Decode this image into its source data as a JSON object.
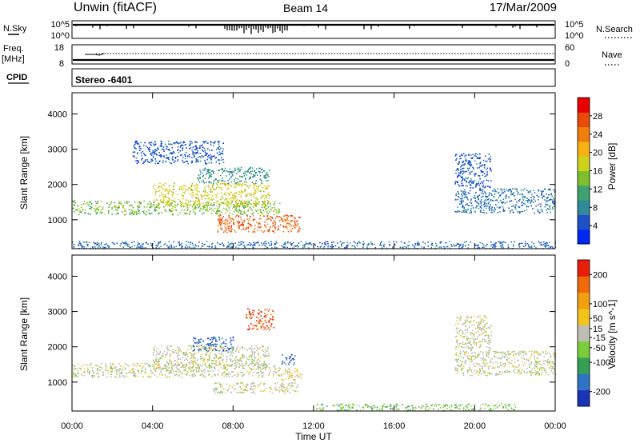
{
  "header": {
    "title": "Unwin (fitACF)",
    "beam": "Beam 14",
    "date": "17/Mar/2009"
  },
  "status_panels": {
    "nsky_label": "N.Sky",
    "nsky_ticks": [
      "10^5",
      "10^0"
    ],
    "nsearch_label": "N.Search",
    "nsearch_ticks": [
      "10^5",
      "10^0"
    ],
    "freq_label": "Freq.",
    "freq_unit": "[MHz]",
    "freq_ticks": [
      "18",
      "8"
    ],
    "nave_label": "Nave",
    "nave_ticks": [
      "60",
      "0"
    ],
    "cpid_label": "CPID",
    "cpid_value": "Stereo -6401"
  },
  "chart_data": [
    {
      "type": "heatmap",
      "quantity": "power",
      "ylabel": "Slant Range [km]",
      "xlabel": "",
      "x_ticks": [
        "00:00",
        "04:00",
        "08:00",
        "12:00",
        "16:00",
        "20:00",
        "00:00"
      ],
      "xlim_hours": [
        0,
        24
      ],
      "y_ticks": [
        1000,
        2000,
        3000,
        4000
      ],
      "ylim": [
        180,
        4600
      ],
      "colorbar": {
        "label": "Power [dB]",
        "ticks": [
          4,
          8,
          12,
          16,
          20,
          24,
          28
        ],
        "range": [
          0,
          32
        ],
        "colors": [
          "#0028f0",
          "#1e50c8",
          "#2f8a9a",
          "#3fa070",
          "#7cc02c",
          "#cfd21a",
          "#f6b214",
          "#f07d0c",
          "#e84a08",
          "#e80000"
        ]
      },
      "regions": [
        {
          "t0": 0.0,
          "t1": 10.3,
          "r0": 1150,
          "r1": 1550,
          "level": 14
        },
        {
          "t0": 4.0,
          "t1": 9.8,
          "r0": 1400,
          "r1": 2050,
          "level": 18
        },
        {
          "t0": 6.2,
          "t1": 9.8,
          "r0": 2050,
          "r1": 2500,
          "level": 9
        },
        {
          "t0": 3.0,
          "t1": 7.5,
          "r0": 2600,
          "r1": 3250,
          "level": 5
        },
        {
          "t0": 7.2,
          "t1": 11.3,
          "r0": 650,
          "r1": 1150,
          "level": 26
        },
        {
          "t0": 19.0,
          "t1": 24.0,
          "r0": 1200,
          "r1": 1900,
          "level": 7
        },
        {
          "t0": 19.0,
          "t1": 20.8,
          "r0": 1900,
          "r1": 2900,
          "level": 5
        },
        {
          "t0": 0.0,
          "t1": 24.0,
          "r0": 200,
          "r1": 400,
          "level": 6
        }
      ]
    },
    {
      "type": "heatmap",
      "quantity": "velocity",
      "ylabel": "Slant Range [km]",
      "xlabel": "Time UT",
      "x_ticks": [
        "00:00",
        "04:00",
        "08:00",
        "12:00",
        "16:00",
        "20:00",
        "00:00"
      ],
      "xlim_hours": [
        0,
        24
      ],
      "y_ticks": [
        1000,
        2000,
        3000,
        4000
      ],
      "ylim": [
        180,
        4600
      ],
      "colorbar": {
        "label": "Velocity [m s^-1]",
        "ticks": [
          200,
          100,
          50,
          15,
          -15,
          -50,
          -100,
          -200
        ],
        "range": [
          -250,
          250
        ],
        "colors": [
          "#1a34b8",
          "#2f73c4",
          "#33a055",
          "#7bcc3a",
          "#bebeb4",
          "#f2c31a",
          "#f0a010",
          "#ef6a0a",
          "#e81e0a"
        ]
      },
      "regions": [
        {
          "t0": 0.0,
          "t1": 10.3,
          "r0": 1150,
          "r1": 1550,
          "level": 0
        },
        {
          "t0": 4.0,
          "t1": 9.8,
          "r0": 1400,
          "r1": 2050,
          "level": 0
        },
        {
          "t0": 6.0,
          "t1": 8.0,
          "r0": 1900,
          "r1": 2300,
          "level": -180
        },
        {
          "t0": 8.6,
          "t1": 10.0,
          "r0": 2500,
          "r1": 3100,
          "level": 190
        },
        {
          "t0": 10.4,
          "t1": 11.1,
          "r0": 1500,
          "r1": 1800,
          "level": -190
        },
        {
          "t0": 10.2,
          "t1": 11.4,
          "r0": 1050,
          "r1": 1400,
          "level": 30
        },
        {
          "t0": 7.0,
          "t1": 11.2,
          "r0": 700,
          "r1": 1000,
          "level": 0
        },
        {
          "t0": 19.0,
          "t1": 24.0,
          "r0": 1200,
          "r1": 1900,
          "level": 0
        },
        {
          "t0": 19.0,
          "t1": 20.8,
          "r0": 1900,
          "r1": 2900,
          "level": 5
        },
        {
          "t0": 12.0,
          "t1": 22.0,
          "r0": 200,
          "r1": 400,
          "level": -60
        }
      ]
    }
  ]
}
